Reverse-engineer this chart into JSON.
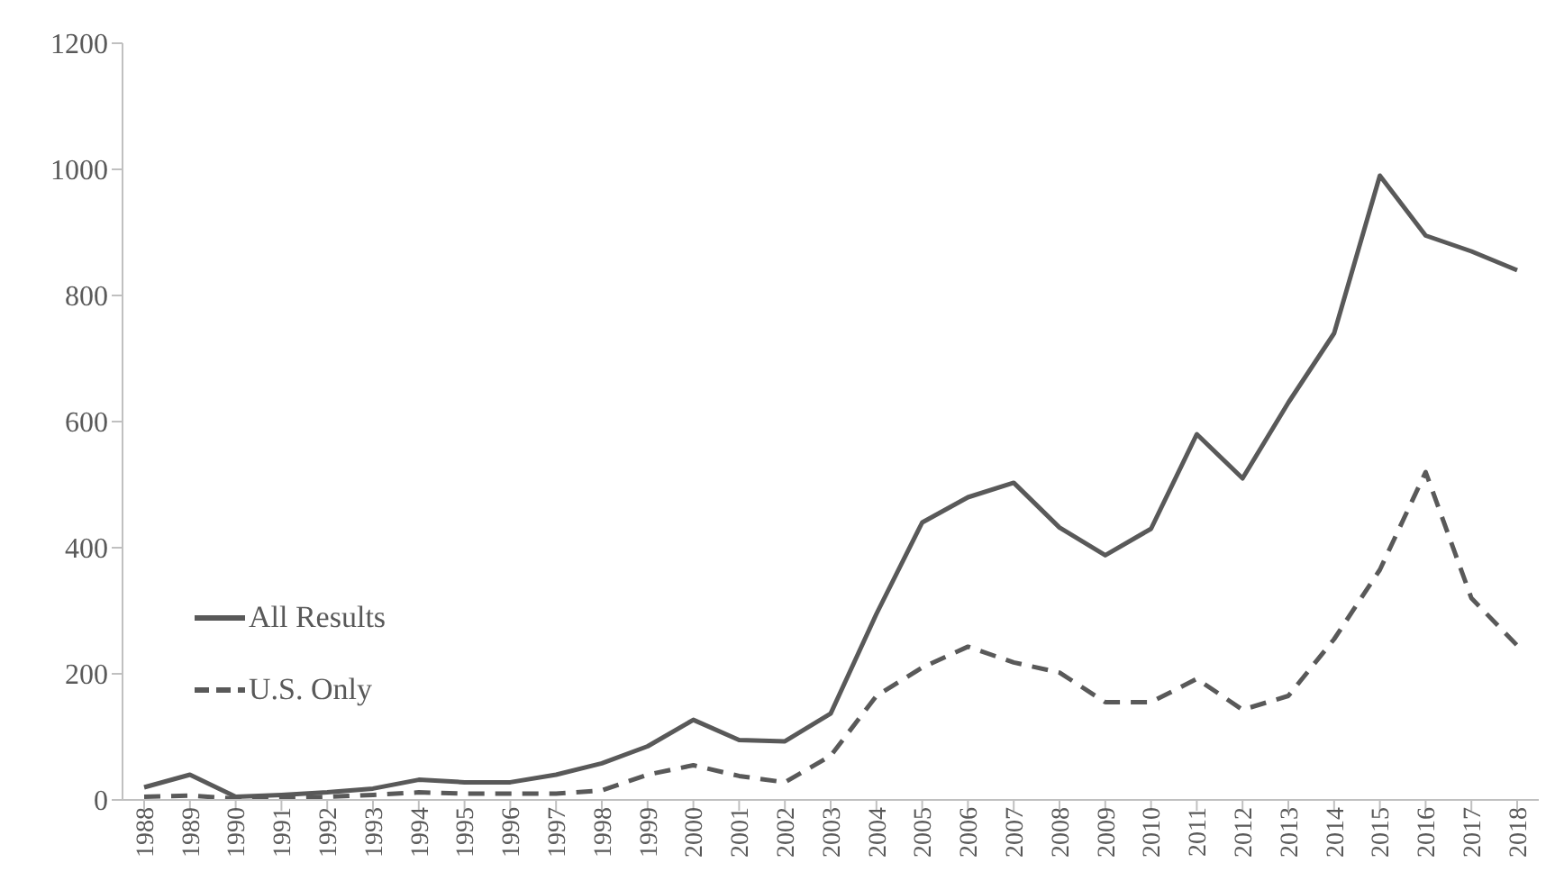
{
  "chart_data": {
    "type": "line",
    "categories": [
      "1988",
      "1989",
      "1990",
      "1991",
      "1992",
      "1993",
      "1994",
      "1995",
      "1996",
      "1997",
      "1998",
      "1999",
      "2000",
      "2001",
      "2002",
      "2003",
      "2004",
      "2005",
      "2006",
      "2007",
      "2008",
      "2009",
      "2010",
      "2011",
      "2012",
      "2013",
      "2014",
      "2015",
      "2016",
      "2017",
      "2018"
    ],
    "series": [
      {
        "name": "All Results",
        "color": "#595959",
        "line_style": "solid",
        "values": [
          20,
          40,
          5,
          8,
          12,
          18,
          32,
          28,
          28,
          40,
          58,
          85,
          127,
          95,
          93,
          137,
          295,
          440,
          480,
          503,
          432,
          388,
          430,
          580,
          510,
          630,
          740,
          990,
          895,
          870,
          840
        ]
      },
      {
        "name": "U.S. Only",
        "color": "#595959",
        "line_style": "dashed",
        "values": [
          5,
          7,
          2,
          3,
          5,
          8,
          12,
          10,
          10,
          10,
          15,
          40,
          55,
          38,
          28,
          70,
          165,
          210,
          243,
          218,
          202,
          155,
          155,
          192,
          143,
          165,
          255,
          365,
          520,
          320,
          245
        ]
      }
    ],
    "ylim": [
      0,
      1200
    ],
    "yticks": [
      0,
      200,
      400,
      600,
      800,
      1000,
      1200
    ],
    "grid": false,
    "legend": "bottom left",
    "marker": "none"
  }
}
